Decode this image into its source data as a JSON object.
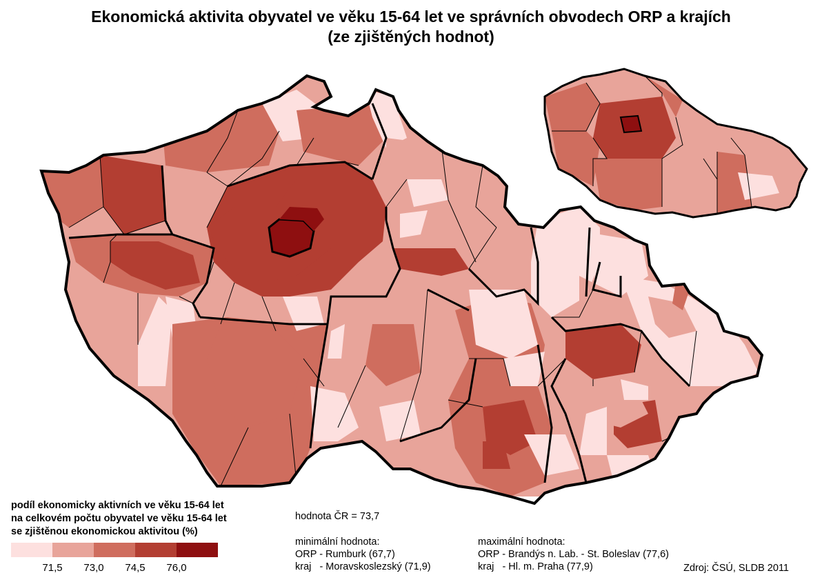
{
  "title": {
    "line1": "Ekonomická aktivita obyvatel ve věku 15-64 let ve správních obvodech ORP a krajích",
    "line2": "(ze zjištěných hodnot)"
  },
  "legend": {
    "title_lines": [
      "podíl ekonomicky aktivních ve věku 15-64 let",
      "na celkovém počtu obyvatel ve věku 15-64 let",
      "se zjištěnou ekonomickou aktivitou (%)"
    ],
    "colors": [
      "#fde0df",
      "#e8a49a",
      "#cf6d5e",
      "#b33e32",
      "#8e0f10"
    ],
    "ticks": [
      "71,5",
      "73,0",
      "74,5",
      "76,0"
    ]
  },
  "national_value": "hodnota ČR = 73,7",
  "minimum": {
    "heading": "minimální hodnota:",
    "orp": "ORP - Rumburk (67,7)",
    "kraj": "kraj   - Moravskoslezský (71,9)"
  },
  "maximum": {
    "heading": "maximální hodnota:",
    "orp": "ORP - Brandýs n. Lab. - St. Boleslav (77,6)",
    "kraj": "kraj   - Hl. m. Praha (77,9)"
  },
  "source": "Zdroj: ČSÚ, SLDB 2011"
}
